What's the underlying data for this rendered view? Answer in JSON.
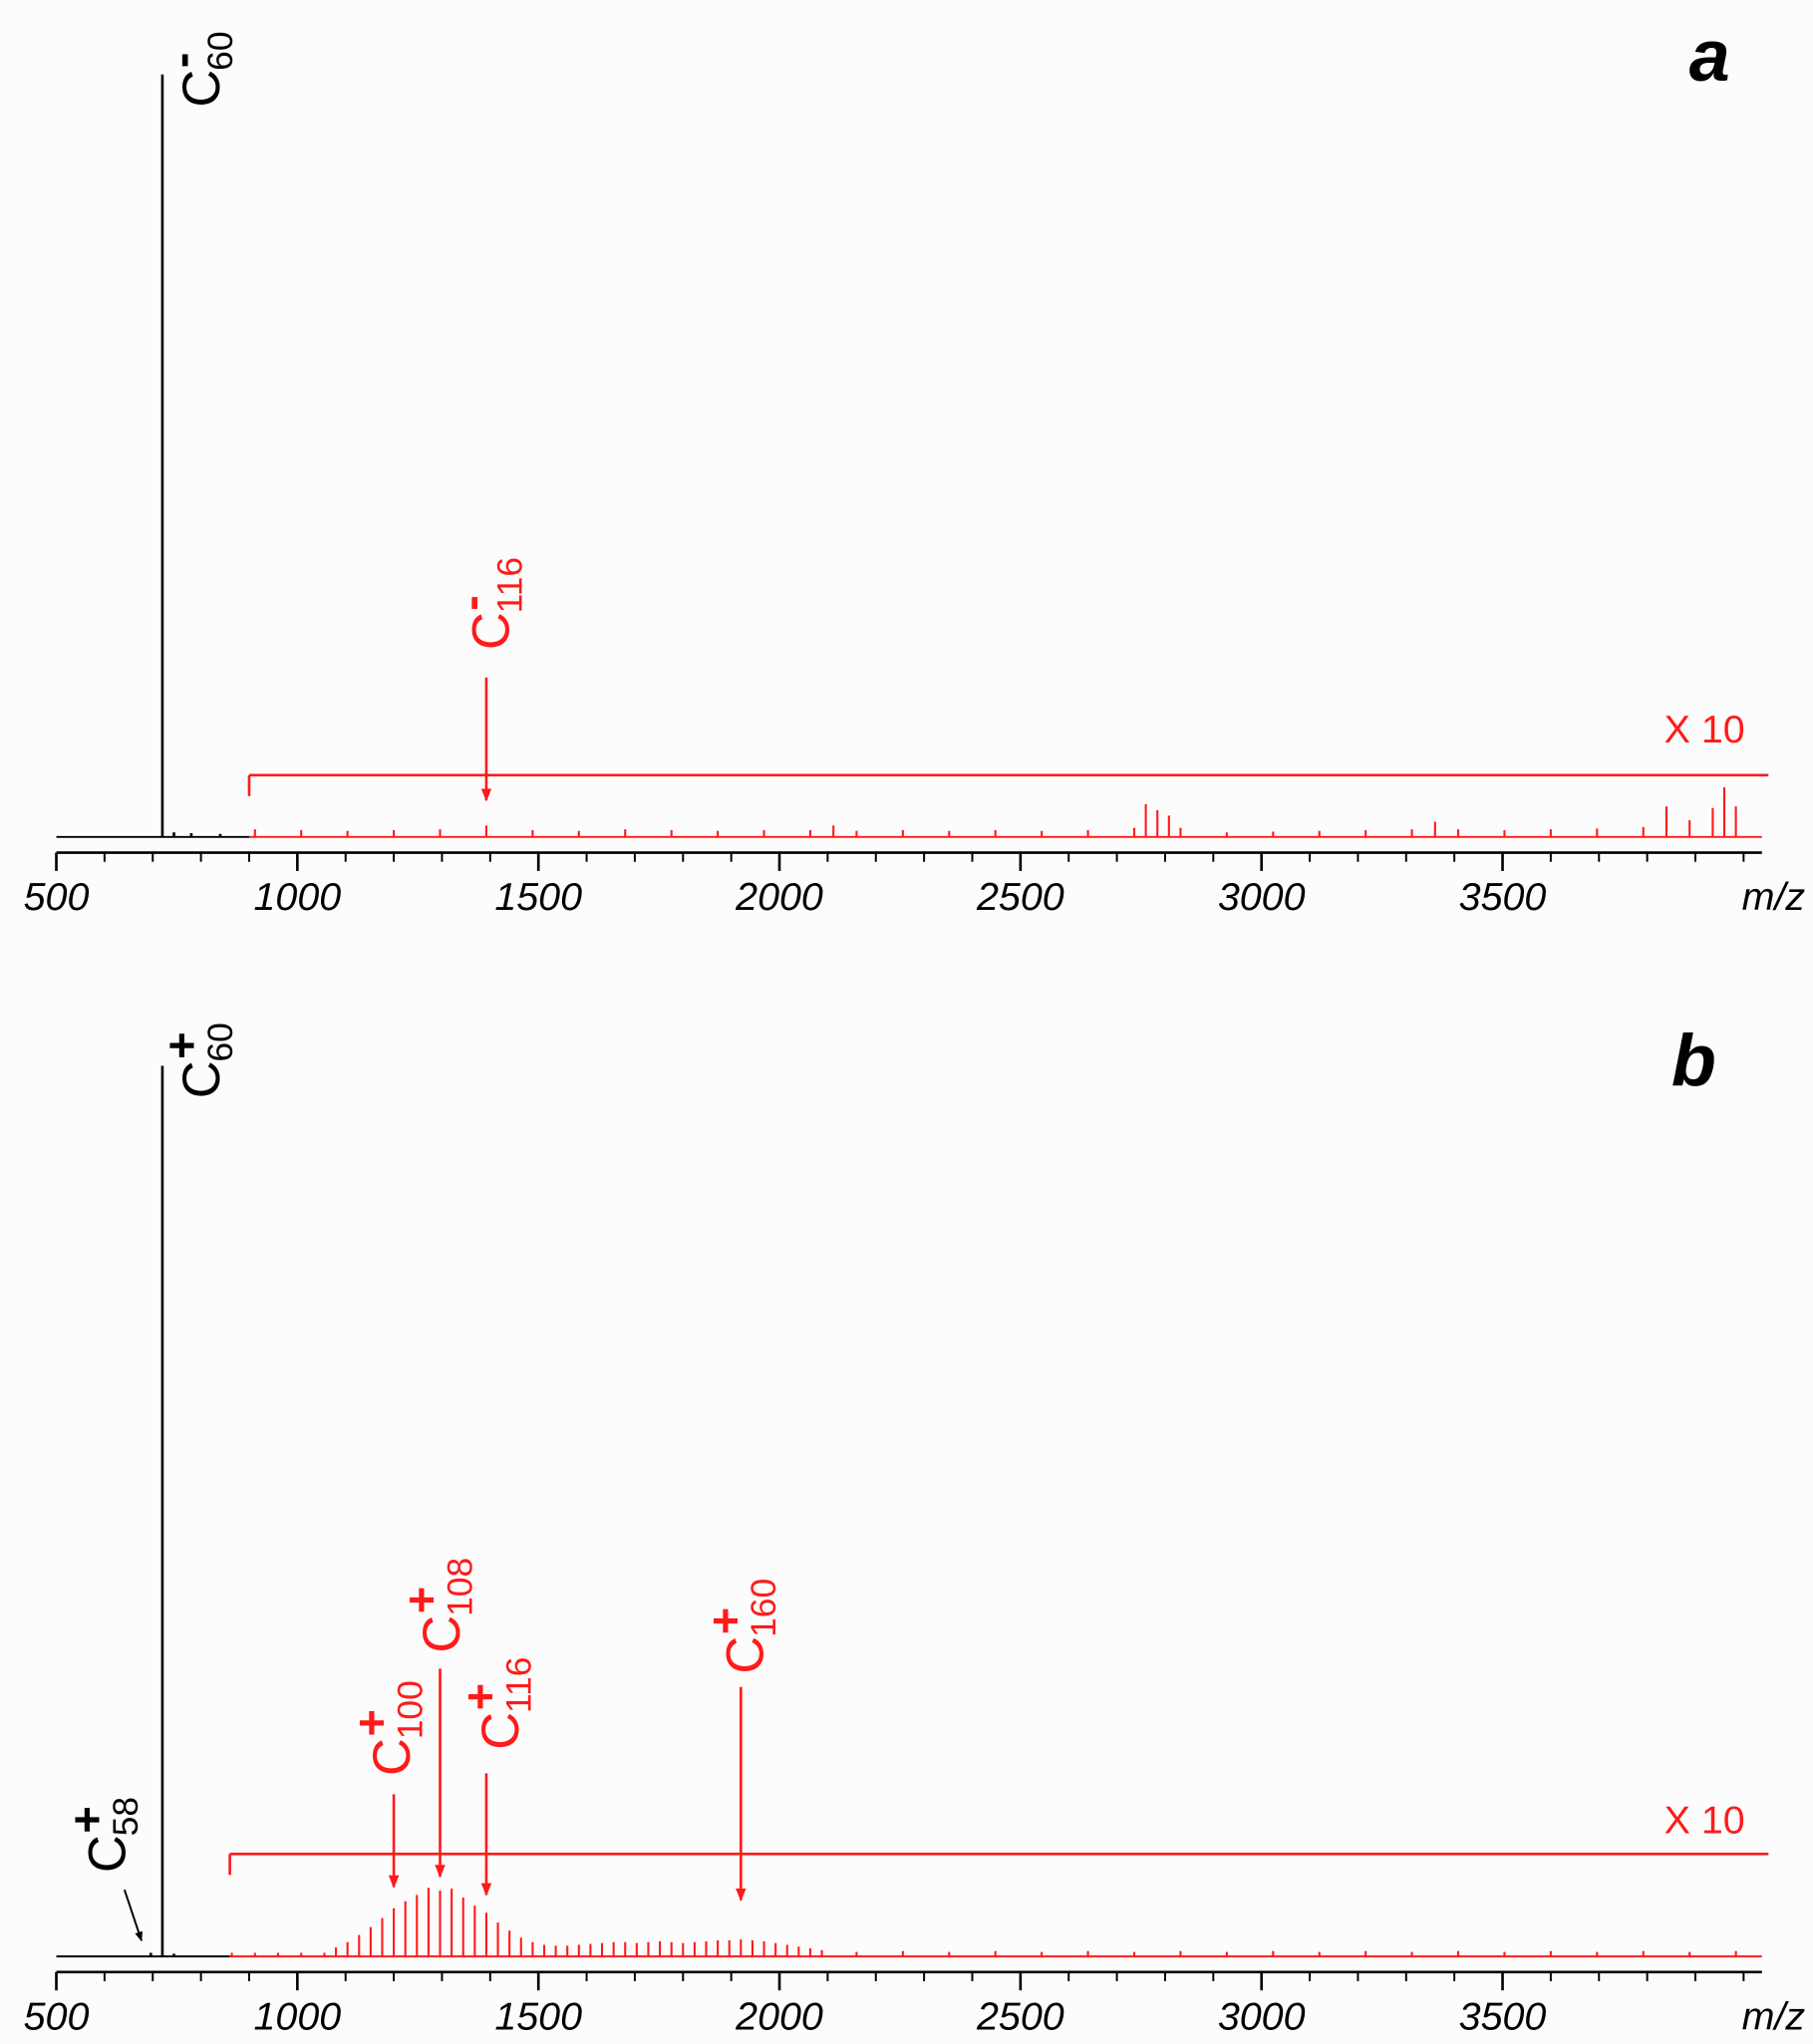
{
  "chart_data": [
    {
      "type": "spectrum",
      "panel_label": "a",
      "xlabel": "m/z",
      "xlim": [
        500,
        4038
      ],
      "ylim": [
        0,
        100
      ],
      "xticks": [
        500,
        1000,
        1500,
        2000,
        2500,
        3000,
        3500
      ],
      "xminorticks": [
        600,
        700,
        800,
        900,
        1100,
        1200,
        1300,
        1400,
        1600,
        1700,
        1800,
        1900,
        2100,
        2200,
        2300,
        2400,
        2600,
        2700,
        2800,
        2900,
        3100,
        3200,
        3300,
        3400,
        3600,
        3700,
        3800,
        3900,
        4000
      ],
      "series": [
        {
          "color": "#000000",
          "x": [
            720,
            744,
            780,
            840
          ],
          "values": [
            100,
            0.6,
            0.5,
            0.4
          ]
        },
        {
          "color": "#ff1a1a",
          "x": [
            912,
            1008,
            1104,
            1200,
            1296,
            1392,
            1488,
            1584,
            1680,
            1776,
            1872,
            1968,
            2064,
            2112,
            2160,
            2256,
            2352,
            2448,
            2544,
            2640,
            2736,
            2760,
            2784,
            2808,
            2832,
            2928,
            3024,
            3120,
            3216,
            3312,
            3360,
            3408,
            3504,
            3600,
            3696,
            3792,
            3840,
            3888,
            3936,
            3960,
            3984
          ],
          "values": [
            1.0,
            0.9,
            0.8,
            0.9,
            1.0,
            1.5,
            0.9,
            0.8,
            1.0,
            0.9,
            0.8,
            0.9,
            0.9,
            1.5,
            0.8,
            0.9,
            0.8,
            0.9,
            0.8,
            0.9,
            1.2,
            4.3,
            3.5,
            2.8,
            1.2,
            0.6,
            0.7,
            0.8,
            0.9,
            1.0,
            2.0,
            1.0,
            0.9,
            1.0,
            1.1,
            1.3,
            4.0,
            2.2,
            3.8,
            6.5,
            4.0
          ]
        }
      ],
      "magnification": {
        "label": "X 10",
        "from": 900,
        "level": 8.1,
        "color": "#ff1a1a"
      },
      "annotations": [
        {
          "base": "C",
          "sub": "60",
          "sup": "-",
          "x": 720,
          "color": "#000000"
        },
        {
          "base": "C",
          "sub": "116",
          "sup": "-",
          "x": 1392,
          "color": "#ff1a1a"
        }
      ]
    },
    {
      "type": "spectrum",
      "panel_label": "b",
      "xlabel": "m/z",
      "xlim": [
        500,
        4038
      ],
      "ylim": [
        0,
        100
      ],
      "xticks": [
        500,
        1000,
        1500,
        2000,
        2500,
        3000,
        3500
      ],
      "xminorticks": [
        600,
        700,
        800,
        900,
        1100,
        1200,
        1300,
        1400,
        1600,
        1700,
        1800,
        1900,
        2100,
        2200,
        2300,
        2400,
        2600,
        2700,
        2800,
        2900,
        3100,
        3200,
        3300,
        3400,
        3600,
        3700,
        3800,
        3900,
        4000
      ],
      "series": [
        {
          "color": "#000000",
          "x": [
            696,
            720,
            744
          ],
          "values": [
            0.4,
            100,
            0.3
          ]
        },
        {
          "color": "#ff1a1a",
          "x": [
            864,
            912,
            960,
            1008,
            1056,
            1080,
            1104,
            1128,
            1152,
            1176,
            1200,
            1224,
            1248,
            1272,
            1296,
            1320,
            1344,
            1368,
            1392,
            1416,
            1440,
            1464,
            1488,
            1512,
            1536,
            1560,
            1584,
            1608,
            1632,
            1656,
            1680,
            1704,
            1728,
            1752,
            1776,
            1800,
            1824,
            1848,
            1872,
            1896,
            1920,
            1944,
            1968,
            1992,
            2016,
            2040,
            2064,
            2088,
            2160,
            2256,
            2352,
            2448,
            2544,
            2640,
            2736,
            2832,
            2928,
            3024,
            3120,
            3216,
            3312,
            3408,
            3504,
            3600,
            3696,
            3792,
            3888,
            3984
          ],
          "values": [
            0.4,
            0.4,
            0.4,
            0.4,
            0.4,
            1.0,
            1.6,
            2.4,
            3.3,
            4.3,
            5.4,
            6.2,
            6.9,
            7.7,
            7.4,
            7.6,
            6.6,
            5.7,
            4.9,
            3.8,
            2.9,
            2.1,
            1.6,
            1.3,
            1.2,
            1.2,
            1.3,
            1.4,
            1.5,
            1.6,
            1.6,
            1.5,
            1.6,
            1.7,
            1.6,
            1.5,
            1.6,
            1.7,
            1.8,
            1.8,
            1.9,
            1.8,
            1.7,
            1.5,
            1.3,
            1.1,
            0.9,
            0.7,
            0.5,
            0.6,
            0.5,
            0.6,
            0.5,
            0.6,
            0.5,
            0.6,
            0.5,
            0.6,
            0.5,
            0.6,
            0.5,
            0.6,
            0.5,
            0.6,
            0.5,
            0.6,
            0.5,
            0.6
          ]
        }
      ],
      "magnification": {
        "label": "X 10",
        "from": 860,
        "level": 11.5,
        "color": "#ff1a1a"
      },
      "annotations": [
        {
          "base": "C",
          "sub": "58",
          "sup": "+",
          "x": 696,
          "color": "#000000"
        },
        {
          "base": "C",
          "sub": "60",
          "sup": "+",
          "x": 720,
          "color": "#000000"
        },
        {
          "base": "C",
          "sub": "100",
          "sup": "+",
          "x": 1200,
          "color": "#ff1a1a"
        },
        {
          "base": "C",
          "sub": "108",
          "sup": "+",
          "x": 1296,
          "color": "#ff1a1a"
        },
        {
          "base": "C",
          "sub": "116",
          "sup": "+",
          "x": 1392,
          "color": "#ff1a1a"
        },
        {
          "base": "C",
          "sub": "160",
          "sup": "+",
          "x": 1920,
          "color": "#ff1a1a"
        }
      ]
    }
  ]
}
